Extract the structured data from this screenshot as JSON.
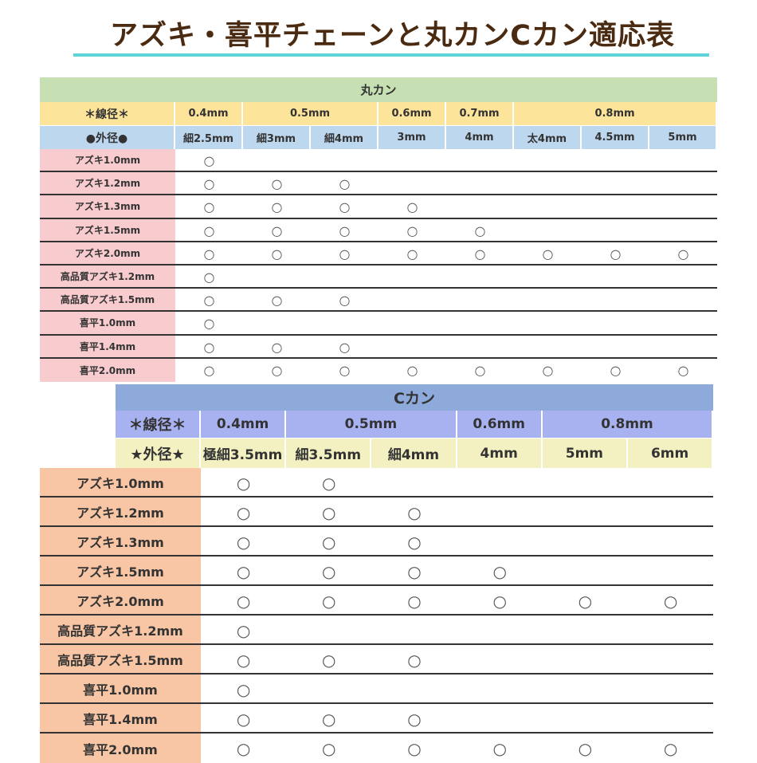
{
  "title": "アズキ・喜平チェーンと丸カンCカン適応表",
  "colors": {
    "title": "#4a2a10",
    "underline": "#5fd3da"
  },
  "marukan": {
    "header": "丸カン",
    "wire_label": "＊線径＊",
    "wire": [
      {
        "label": "0.4mm",
        "span": 1
      },
      {
        "label": "0.5mm",
        "span": 2
      },
      {
        "label": "0.6mm",
        "span": 1
      },
      {
        "label": "0.7mm",
        "span": 1
      },
      {
        "label": "0.8mm",
        "span": 3
      }
    ],
    "outer_label": "●外径●",
    "outer": [
      "細2.5mm",
      "細3mm",
      "細4mm",
      "3mm",
      "4mm",
      "太4mm",
      "4.5mm",
      "5mm"
    ],
    "rows": [
      {
        "label": "アズキ1.0mm",
        "cells": [
          "○",
          "",
          "",
          "",
          "",
          "",
          "",
          ""
        ]
      },
      {
        "label": "アズキ1.2mm",
        "cells": [
          "○",
          "○",
          "○",
          "",
          "",
          "",
          "",
          ""
        ]
      },
      {
        "label": "アズキ1.3mm",
        "cells": [
          "○",
          "○",
          "○",
          "○",
          "",
          "",
          "",
          ""
        ]
      },
      {
        "label": "アズキ1.5mm",
        "cells": [
          "○",
          "○",
          "○",
          "○",
          "○",
          "",
          "",
          ""
        ]
      },
      {
        "label": "アズキ2.0mm",
        "cells": [
          "○",
          "○",
          "○",
          "○",
          "○",
          "○",
          "○",
          "○"
        ]
      },
      {
        "label": "高品質アズキ1.2mm",
        "cells": [
          "○",
          "",
          "",
          "",
          "",
          "",
          "",
          ""
        ]
      },
      {
        "label": "高品質アズキ1.5mm",
        "cells": [
          "○",
          "○",
          "○",
          "",
          "",
          "",
          "",
          ""
        ]
      },
      {
        "label": "喜平1.0mm",
        "cells": [
          "○",
          "",
          "",
          "",
          "",
          "",
          "",
          ""
        ]
      },
      {
        "label": "喜平1.4mm",
        "cells": [
          "○",
          "○",
          "○",
          "",
          "",
          "",
          "",
          ""
        ]
      },
      {
        "label": "喜平2.0mm",
        "cells": [
          "○",
          "○",
          "○",
          "○",
          "○",
          "○",
          "○",
          "○"
        ]
      }
    ]
  },
  "ckan": {
    "header": "Cカン",
    "wire_label": "＊線径＊",
    "wire": [
      {
        "label": "0.4mm",
        "span": 1
      },
      {
        "label": "0.5mm",
        "span": 2
      },
      {
        "label": "0.6mm",
        "span": 1
      },
      {
        "label": "0.8mm",
        "span": 2
      }
    ],
    "outer_label": "★外径★",
    "outer": [
      "極細3.5mm",
      "細3.5mm",
      "細4mm",
      "4mm",
      "5mm",
      "6mm"
    ],
    "rows": [
      {
        "label": "アズキ1.0mm",
        "cells": [
          "○",
          "○",
          "",
          "",
          "",
          ""
        ]
      },
      {
        "label": "アズキ1.2mm",
        "cells": [
          "○",
          "○",
          "○",
          "",
          "",
          ""
        ]
      },
      {
        "label": "アズキ1.3mm",
        "cells": [
          "○",
          "○",
          "○",
          "",
          "",
          ""
        ]
      },
      {
        "label": "アズキ1.5mm",
        "cells": [
          "○",
          "○",
          "○",
          "○",
          "",
          ""
        ]
      },
      {
        "label": "アズキ2.0mm",
        "cells": [
          "○",
          "○",
          "○",
          "○",
          "○",
          "○"
        ]
      },
      {
        "label": "高品質アズキ1.2mm",
        "cells": [
          "○",
          "",
          "",
          "",
          "",
          ""
        ]
      },
      {
        "label": "高品質アズキ1.5mm",
        "cells": [
          "○",
          "○",
          "○",
          "",
          "",
          ""
        ]
      },
      {
        "label": "喜平1.0mm",
        "cells": [
          "○",
          "",
          "",
          "",
          "",
          ""
        ]
      },
      {
        "label": "喜平1.4mm",
        "cells": [
          "○",
          "○",
          "○",
          "",
          "",
          ""
        ]
      },
      {
        "label": "喜平2.0mm",
        "cells": [
          "○",
          "○",
          "○",
          "○",
          "○",
          "○"
        ]
      }
    ]
  }
}
